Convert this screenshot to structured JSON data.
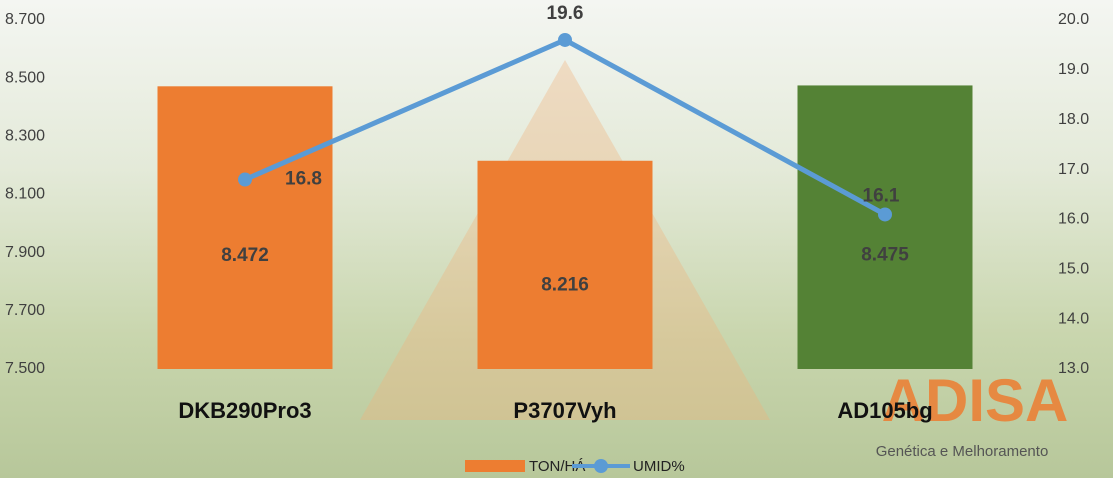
{
  "chart_data": {
    "type": "bar-line",
    "categories": [
      "DKB290Pro3",
      "P3707Vyh",
      "AD105bg"
    ],
    "series": [
      {
        "name": "TON/HÁ",
        "color": "#ED7D31",
        "colors": [
          "#ED7D31",
          "#ED7D31",
          "#548235"
        ],
        "values": [
          8.472,
          8.216,
          8.475
        ]
      },
      {
        "name": "UMID%",
        "color": "#5B9BD5",
        "axis": "y2",
        "values": [
          16.8,
          19.6,
          16.1
        ]
      }
    ],
    "ylim": [
      7.5,
      8.7
    ],
    "yticks": [
      {
        "value": 7.5,
        "label": "7.500"
      },
      {
        "value": 7.7,
        "label": "7.700"
      },
      {
        "value": 7.9,
        "label": "7.900"
      },
      {
        "value": 8.1,
        "label": "8.100"
      },
      {
        "value": 8.3,
        "label": "8.300"
      },
      {
        "value": 8.5,
        "label": "8.500"
      },
      {
        "value": 8.7,
        "label": "8.700"
      }
    ],
    "y2lim": [
      13,
      20
    ],
    "y2ticks": [
      {
        "value": 13,
        "label": "13.0"
      },
      {
        "value": 14,
        "label": "14.0"
      },
      {
        "value": 15,
        "label": "15.0"
      },
      {
        "value": 16,
        "label": "16.0"
      },
      {
        "value": 17,
        "label": "17.0"
      },
      {
        "value": 18,
        "label": "18.0"
      },
      {
        "value": 19,
        "label": "19.0"
      },
      {
        "value": 20,
        "label": "20.0"
      }
    ],
    "legend": "bottom",
    "logo": "ADISA",
    "logo_subtitle": "Genética e Melhoramento"
  }
}
